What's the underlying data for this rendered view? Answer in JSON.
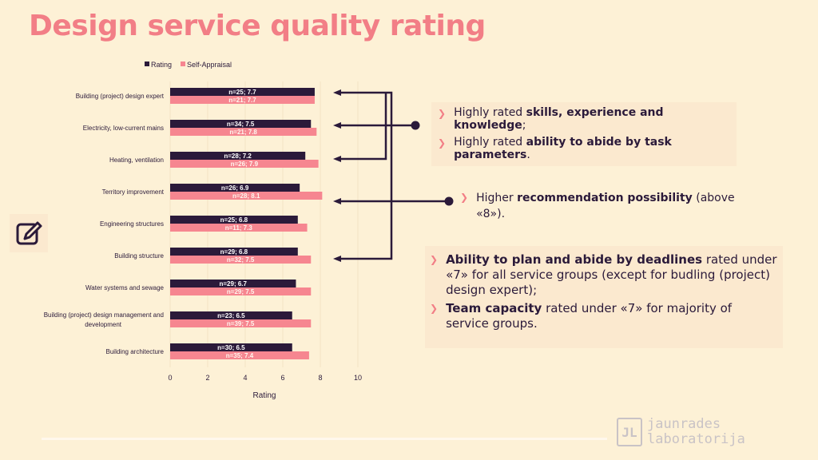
{
  "page": {
    "title": "Design service quality rating",
    "logo_line1": "jaunrades",
    "logo_line2": "laboratorija",
    "logo_mark": "JL"
  },
  "colors": {
    "rating": "#2b1a3a",
    "self": "#f68690",
    "title": "#f27e86",
    "bg": "#fdf1d6"
  },
  "callouts": {
    "c1": {
      "item1_pre": "Highly rated ",
      "item1_bold": "skills, experience and knowledge",
      "item1_post": ";",
      "item2_pre": "Highly rated ",
      "item2_bold": "ability to abide by task parameters",
      "item2_post": "."
    },
    "c2": {
      "pre": "Higher ",
      "bold": "recommendation possibility",
      "post": " (above «8»)."
    },
    "c3": {
      "item1_bold": "Ability to plan and abide by deadlines",
      "item1_post": " rated under «7» for all service groups (except for budling (project) design expert);",
      "item2_bold": "Team capacity",
      "item2_post": " rated under «7» for majority of service groups."
    }
  },
  "chart_data": {
    "type": "bar",
    "orientation": "horizontal",
    "categories": [
      "Building (project) design expert",
      "Electricity, low-current mains",
      "Heating, ventilation",
      "Territory improvement",
      "Engineering structures",
      "Building structure",
      "Water systems and sewage",
      "Building (project) design management and development",
      "Building architecture"
    ],
    "series": [
      {
        "name": "Rating",
        "values": [
          7.7,
          7.5,
          7.2,
          6.9,
          6.8,
          6.8,
          6.7,
          6.5,
          6.5
        ],
        "labels": [
          "n=25; 7.7",
          "n=34; 7.5",
          "n=28; 7.2",
          "n=26; 6.9",
          "n=25; 6.8",
          "n=29; 6.8",
          "n=29; 6.7",
          "n=23; 6.5",
          "n=30; 6.5"
        ]
      },
      {
        "name": "Self-Appraisal",
        "values": [
          7.7,
          7.8,
          7.9,
          8.1,
          7.3,
          7.5,
          7.5,
          7.5,
          7.4
        ],
        "labels": [
          "n=21; 7.7",
          "n=21; 7.8",
          "n=26; 7.9",
          "n=28; 8.1",
          "n=11; 7.3",
          "n=32; 7.5",
          "n=29; 7.5",
          "n=39; 7.5",
          "n=35; 7.4"
        ]
      }
    ],
    "xlabel": "Rating",
    "xlim": [
      0,
      10
    ],
    "xticks": [
      0,
      2,
      4,
      6,
      8,
      10
    ],
    "legend": "top",
    "grid": true
  }
}
